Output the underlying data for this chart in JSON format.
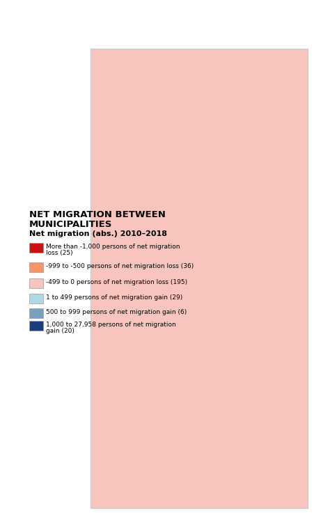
{
  "title_line1": "NET MIGRATION BETWEEN",
  "title_line2": "MUNICIPALITIES",
  "subtitle": "Net migration (abs.) 2010–2018",
  "legend_items": [
    {
      "color": "#cc1111",
      "label": "More than -1,000 persons of net migration\nloss (25)"
    },
    {
      "color": "#f4956a",
      "label": "-999 to -500 persons of net migration loss (36)"
    },
    {
      "color": "#f7c4be",
      "label": "-499 to 0 persons of net migration loss (195)"
    },
    {
      "color": "#add8e6",
      "label": "1 to 499 persons of net migration gain (29)"
    },
    {
      "color": "#7a9fbf",
      "label": "500 to 999 persons of net migration gain (6)"
    },
    {
      "color": "#1a3d7c",
      "label": "1,000 to 27,958 persons of net migration\ngain (20)"
    }
  ],
  "background_color": "#ffffff",
  "map_background": "#ffffff",
  "border_color": "#ffffff",
  "municipality_border": "#ffffff",
  "title_fontsize": 10,
  "subtitle_fontsize": 8.5,
  "legend_fontsize": 7.5
}
